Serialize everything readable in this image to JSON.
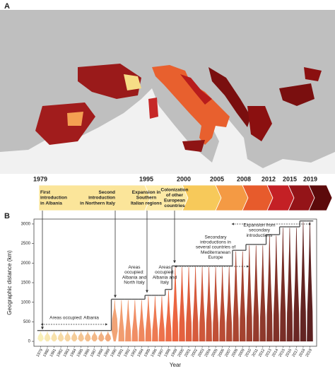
{
  "panel_a": {
    "label": "A"
  },
  "timeline": {
    "years": [
      1979,
      1995,
      2000,
      2005,
      2008,
      2012,
      2015,
      2019
    ],
    "colors": [
      "#fbe59a",
      "#fdeaa6",
      "#f7c95a",
      "#f49a44",
      "#e75b2c",
      "#c42025",
      "#941418",
      "#5c0a0b"
    ],
    "events": [
      {
        "lines": [
          "First",
          "introduction",
          "in Albania"
        ]
      },
      {
        "lines": [
          "Second",
          "introduction",
          "in Northern Italy"
        ]
      },
      {
        "lines": [
          "Expansion in",
          "Southern",
          "Italian regions"
        ]
      },
      {
        "lines": [
          "Colonization",
          "of other",
          "European",
          "countries"
        ]
      }
    ]
  },
  "chart_data": {
    "type": "violin",
    "panel_label": "B",
    "x_label": "Year",
    "y_label": "Geographic distance (km)",
    "x": [
      1979,
      1980,
      1981,
      1982,
      1983,
      1984,
      1985,
      1986,
      1987,
      1988,
      1989,
      1990,
      1991,
      1992,
      1993,
      1994,
      1995,
      1996,
      1997,
      1998,
      1999,
      2000,
      2001,
      2002,
      2003,
      2004,
      2005,
      2006,
      2007,
      2008,
      2009,
      2010,
      2011,
      2012,
      2013,
      2014,
      2015,
      2016,
      2017,
      2018,
      2019
    ],
    "values": [
      250,
      250,
      250,
      250,
      250,
      250,
      250,
      250,
      250,
      250,
      250,
      1050,
      1050,
      1050,
      1050,
      1050,
      1150,
      1150,
      1150,
      1300,
      1900,
      1900,
      1900,
      1900,
      1900,
      1900,
      1900,
      1900,
      1900,
      2300,
      2300,
      2450,
      2450,
      2450,
      2700,
      2700,
      2900,
      2900,
      2900,
      3050,
      3050
    ],
    "color_scale": [
      "#f8eeb0",
      "#e9542c",
      "#4a0808"
    ],
    "xlim": [
      1978,
      2020
    ],
    "ylim": [
      -125,
      3125
    ],
    "yticks": [
      0,
      500,
      1000,
      1500,
      2000,
      2500,
      3000
    ],
    "annotations": [
      {
        "lines": [
          "Areas occupied: Albania"
        ]
      },
      {
        "lines": [
          "Areas",
          "occupied:",
          "Albania and",
          "North Italy"
        ]
      },
      {
        "lines": [
          "Areas",
          "occupied:",
          "Albania and",
          "Italy"
        ]
      },
      {
        "lines": [
          "Secondary",
          "introductions in",
          "several countries of",
          "Mediterranean",
          "Europe"
        ]
      },
      {
        "lines": [
          "Expansion from",
          "secondary",
          "introductions"
        ]
      }
    ]
  }
}
